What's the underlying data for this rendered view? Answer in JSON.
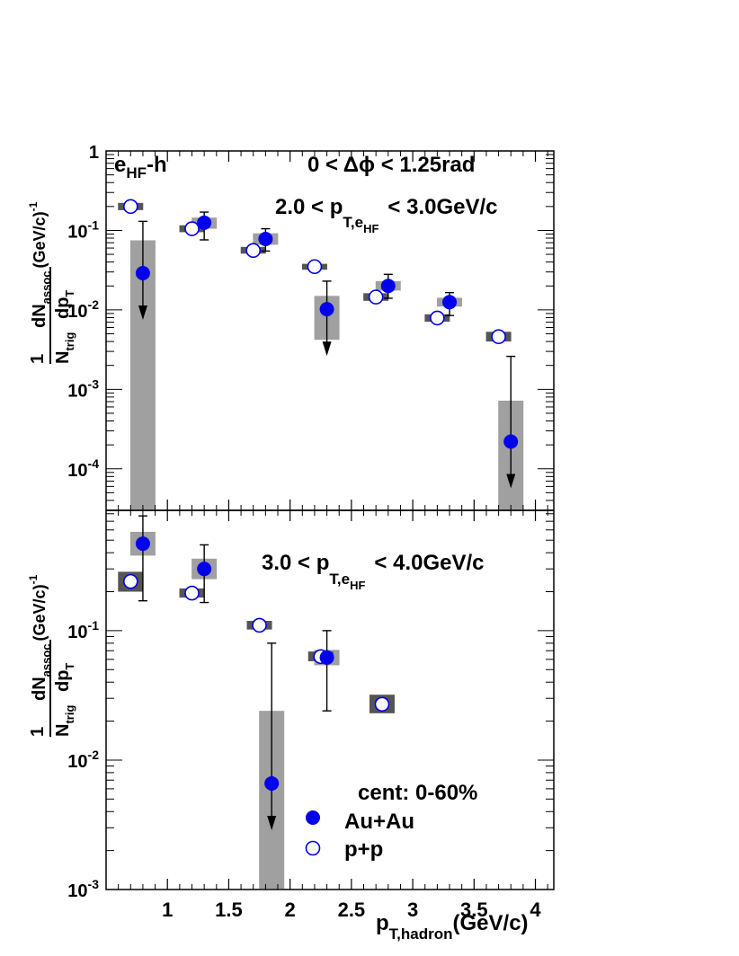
{
  "colors": {
    "auau": "#0000ee",
    "pp_edge": "#0000ee",
    "sys_auau": "#a0a0a0",
    "sys_pp": "#555555",
    "axes": "#000000"
  },
  "legend": {
    "title": "cent: 0-60%",
    "auau_label": "Au+Au",
    "pp_label": "p+p"
  },
  "top_panel": {
    "label": "e",
    "label_sub": "HF",
    "label_suffix": "-h",
    "dphi_text": "0 < Δϕ < 1.25rad",
    "pt_range_left": "2.0 < p",
    "pt_range_sub": "T,e",
    "pt_range_subsub": "HF",
    "pt_range_right": "< 3.0GeV/c"
  },
  "bottom_panel": {
    "pt_range_left": "3.0 < p",
    "pt_range_sub": "T,e",
    "pt_range_subsub": "HF",
    "pt_range_right": "< 4.0GeV/c"
  },
  "ylabel": {
    "num": "dN",
    "num_sub": "assoc",
    "unit": "(GeV/c)",
    "unit_sup": "-1",
    "den_one": "1",
    "den_n": "N",
    "den_n_sub": "trig",
    "den_dp": "dp",
    "den_dp_sub": "T"
  },
  "xlabel": {
    "main": "p",
    "sub": "T,hadron",
    "unit": "(GeV/c)"
  },
  "chart_data": [
    {
      "type": "scatter",
      "panel": "top",
      "ylog": true,
      "xlim": [
        0.5,
        4.15
      ],
      "ylim": [
        3e-05,
        1
      ],
      "x_ticks": [
        1,
        1.5,
        2,
        2.5,
        3,
        3.5,
        4
      ],
      "y_ticks": [
        {
          "value": 1,
          "mant": "1",
          "exp": ""
        },
        {
          "value": 0.1,
          "mant": "10",
          "exp": "-1"
        },
        {
          "value": 0.01,
          "mant": "10",
          "exp": "-2"
        },
        {
          "value": 0.001,
          "mant": "10",
          "exp": "-3"
        },
        {
          "value": 0.0001,
          "mant": "10",
          "exp": "-4"
        }
      ],
      "series": [
        {
          "name": "Au+Au",
          "points": [
            {
              "x": 0.8,
              "y": 0.029,
              "err_hi": 0.13,
              "err_lo": null,
              "upper_limit": true,
              "sys_lo": 1e-05,
              "sys_hi": 0.075
            },
            {
              "x": 1.3,
              "y": 0.125,
              "err_hi": 0.17,
              "err_lo": 0.076,
              "upper_limit": false,
              "sys_lo": 0.105,
              "sys_hi": 0.145
            },
            {
              "x": 1.8,
              "y": 0.078,
              "err_hi": 0.105,
              "err_lo": 0.055,
              "upper_limit": false,
              "sys_lo": 0.066,
              "sys_hi": 0.092
            },
            {
              "x": 2.3,
              "y": 0.0102,
              "err_hi": 0.023,
              "err_lo": null,
              "upper_limit": true,
              "sys_lo": 0.0042,
              "sys_hi": 0.015
            },
            {
              "x": 2.8,
              "y": 0.02,
              "err_hi": 0.028,
              "err_lo": 0.014,
              "upper_limit": false,
              "sys_lo": 0.0175,
              "sys_hi": 0.023
            },
            {
              "x": 3.3,
              "y": 0.0125,
              "err_hi": 0.0165,
              "err_lo": 0.0085,
              "upper_limit": false,
              "sys_lo": 0.011,
              "sys_hi": 0.0142
            },
            {
              "x": 3.8,
              "y": 0.00022,
              "err_hi": 0.0026,
              "err_lo": null,
              "upper_limit": true,
              "sys_lo": 1e-05,
              "sys_hi": 0.00072
            }
          ]
        },
        {
          "name": "p+p",
          "points": [
            {
              "x": 0.7,
              "y": 0.2,
              "sys_lo": 0.18,
              "sys_hi": 0.222
            },
            {
              "x": 1.2,
              "y": 0.105,
              "sys_lo": 0.095,
              "sys_hi": 0.116
            },
            {
              "x": 1.7,
              "y": 0.056,
              "sys_lo": 0.051,
              "sys_hi": 0.062
            },
            {
              "x": 2.2,
              "y": 0.035,
              "sys_lo": 0.032,
              "sys_hi": 0.038
            },
            {
              "x": 2.7,
              "y": 0.0145,
              "sys_lo": 0.013,
              "sys_hi": 0.0162
            },
            {
              "x": 3.2,
              "y": 0.0079,
              "sys_lo": 0.0071,
              "sys_hi": 0.0088
            },
            {
              "x": 3.7,
              "y": 0.0046,
              "sys_lo": 0.004,
              "sys_hi": 0.0053
            }
          ]
        }
      ]
    },
    {
      "type": "scatter",
      "panel": "bottom",
      "ylog": true,
      "xlim": [
        0.5,
        4.15
      ],
      "ylim": [
        0.001,
        0.85
      ],
      "x_ticks": [
        1,
        1.5,
        2,
        2.5,
        3,
        3.5,
        4
      ],
      "x_ticklabels": [
        "1",
        "1.5",
        "2",
        "2.5",
        "3",
        "3.5",
        "4"
      ],
      "y_ticks": [
        {
          "value": 0.1,
          "mant": "10",
          "exp": "-1"
        },
        {
          "value": 0.01,
          "mant": "10",
          "exp": "-2"
        },
        {
          "value": 0.001,
          "mant": "10",
          "exp": "-3"
        }
      ],
      "series": [
        {
          "name": "Au+Au",
          "points": [
            {
              "x": 0.8,
              "y": 0.47,
              "err_hi": 0.77,
              "err_lo": 0.17,
              "upper_limit": false,
              "sys_lo": 0.38,
              "sys_hi": 0.58
            },
            {
              "x": 1.3,
              "y": 0.3,
              "err_hi": 0.46,
              "err_lo": 0.165,
              "upper_limit": false,
              "sys_lo": 0.25,
              "sys_hi": 0.36
            },
            {
              "x": 1.85,
              "y": 0.0066,
              "err_hi": 0.08,
              "err_lo": null,
              "upper_limit": true,
              "sys_lo": 0.0001,
              "sys_hi": 0.024
            },
            {
              "x": 2.3,
              "y": 0.062,
              "err_hi": 0.1,
              "err_lo": 0.024,
              "upper_limit": false,
              "sys_lo": 0.054,
              "sys_hi": 0.071
            }
          ]
        },
        {
          "name": "p+p",
          "points": [
            {
              "x": 0.7,
              "y": 0.24,
              "sys_lo": 0.2,
              "sys_hi": 0.285
            },
            {
              "x": 1.2,
              "y": 0.195,
              "sys_lo": 0.18,
              "sys_hi": 0.212
            },
            {
              "x": 1.75,
              "y": 0.11,
              "sys_lo": 0.102,
              "sys_hi": 0.119
            },
            {
              "x": 2.25,
              "y": 0.063,
              "sys_lo": 0.058,
              "sys_hi": 0.069
            },
            {
              "x": 2.75,
              "y": 0.027,
              "sys_lo": 0.023,
              "sys_hi": 0.032
            }
          ]
        }
      ]
    }
  ]
}
